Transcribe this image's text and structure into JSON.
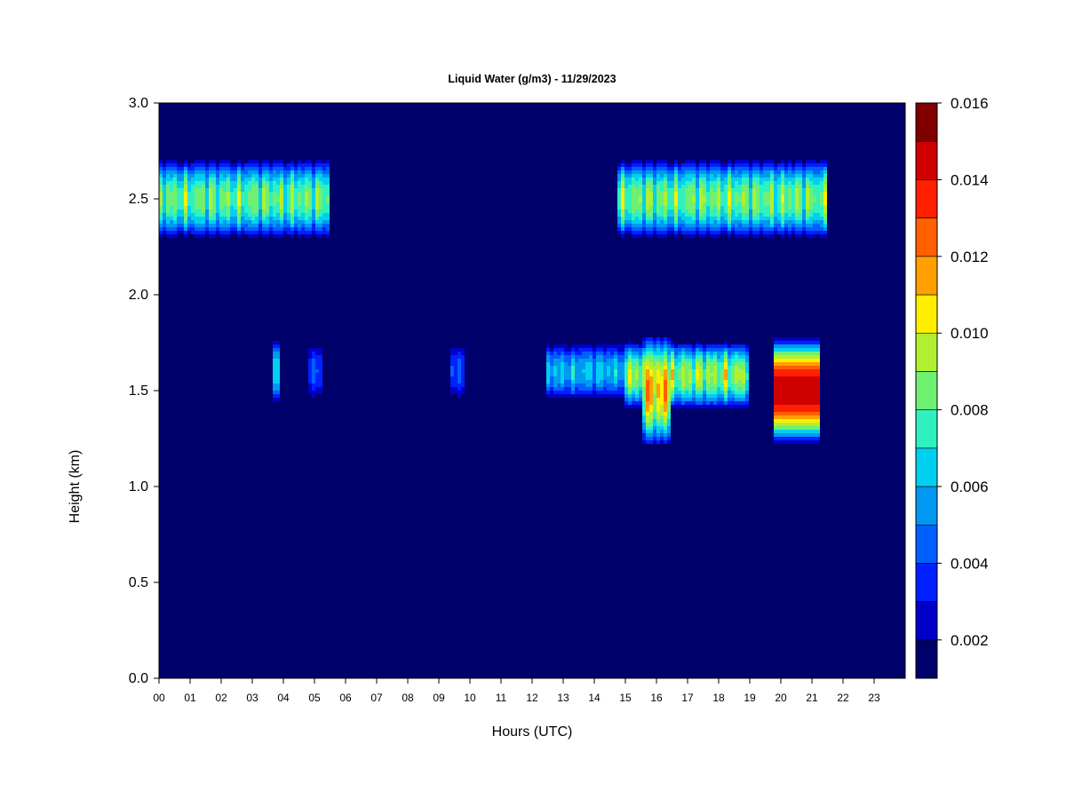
{
  "chart_data": {
    "type": "heatmap",
    "title": "Liquid Water (g/m3) - 11/29/2023",
    "xlabel": "Hours (UTC)",
    "ylabel": "Height (km)",
    "xlim": [
      0,
      24
    ],
    "ylim": [
      0,
      3
    ],
    "x_ticks": [
      "00",
      "01",
      "02",
      "03",
      "04",
      "05",
      "06",
      "07",
      "08",
      "09",
      "10",
      "11",
      "12",
      "13",
      "14",
      "15",
      "16",
      "17",
      "18",
      "19",
      "20",
      "21",
      "22",
      "23"
    ],
    "y_ticks": [
      "0.0",
      "0.5",
      "1.0",
      "1.5",
      "2.0",
      "2.5",
      "3.0"
    ],
    "colorbar": {
      "levels": [
        0.001,
        0.002,
        0.003,
        0.004,
        0.005,
        0.006,
        0.007,
        0.008,
        0.009,
        0.01,
        0.011,
        0.012,
        0.013,
        0.014,
        0.015,
        0.016
      ],
      "colors": [
        "#00006a",
        "#0000c8",
        "#0020ff",
        "#0060ff",
        "#0098f0",
        "#00d0f0",
        "#30f0c0",
        "#70f070",
        "#b0f030",
        "#ffee00",
        "#ffa000",
        "#ff6000",
        "#ff2000",
        "#d00000",
        "#800000"
      ],
      "tick_labels": [
        "0.002",
        "0.004",
        "0.006",
        "0.008",
        "0.010",
        "0.012",
        "0.014",
        "0.016"
      ]
    },
    "background_value": 0.001,
    "features": [
      {
        "x": [
          0.0,
          5.5
        ],
        "y_center": 2.5,
        "half_thickness": 0.21,
        "peak": 0.0103,
        "gaps": true
      },
      {
        "x": [
          14.8,
          21.5
        ],
        "y_center": 2.5,
        "half_thickness": 0.21,
        "peak": 0.0105,
        "gaps": true
      },
      {
        "x": [
          15.0,
          19.0
        ],
        "y_center": 1.58,
        "half_thickness": 0.18,
        "peak": 0.0112,
        "gaps": true
      },
      {
        "x": [
          12.5,
          15.0
        ],
        "y_center": 1.6,
        "half_thickness": 0.15,
        "peak": 0.0075,
        "gaps": true
      },
      {
        "x": [
          15.6,
          16.4
        ],
        "y_center": 1.5,
        "half_thickness": 0.3,
        "peak": 0.0135,
        "gaps": true
      },
      {
        "x": [
          19.8,
          21.2
        ],
        "y_center": 1.5,
        "half_thickness": 0.28,
        "peak": 0.015,
        "gaps": false
      },
      {
        "x": [
          3.7,
          3.9
        ],
        "y_center": 1.6,
        "half_thickness": 0.18,
        "peak": 0.0085,
        "gaps": true
      },
      {
        "x": [
          4.8,
          5.3
        ],
        "y_center": 1.6,
        "half_thickness": 0.15,
        "peak": 0.005,
        "gaps": true
      },
      {
        "x": [
          9.4,
          9.8
        ],
        "y_center": 1.6,
        "half_thickness": 0.15,
        "peak": 0.005,
        "gaps": true
      }
    ]
  }
}
